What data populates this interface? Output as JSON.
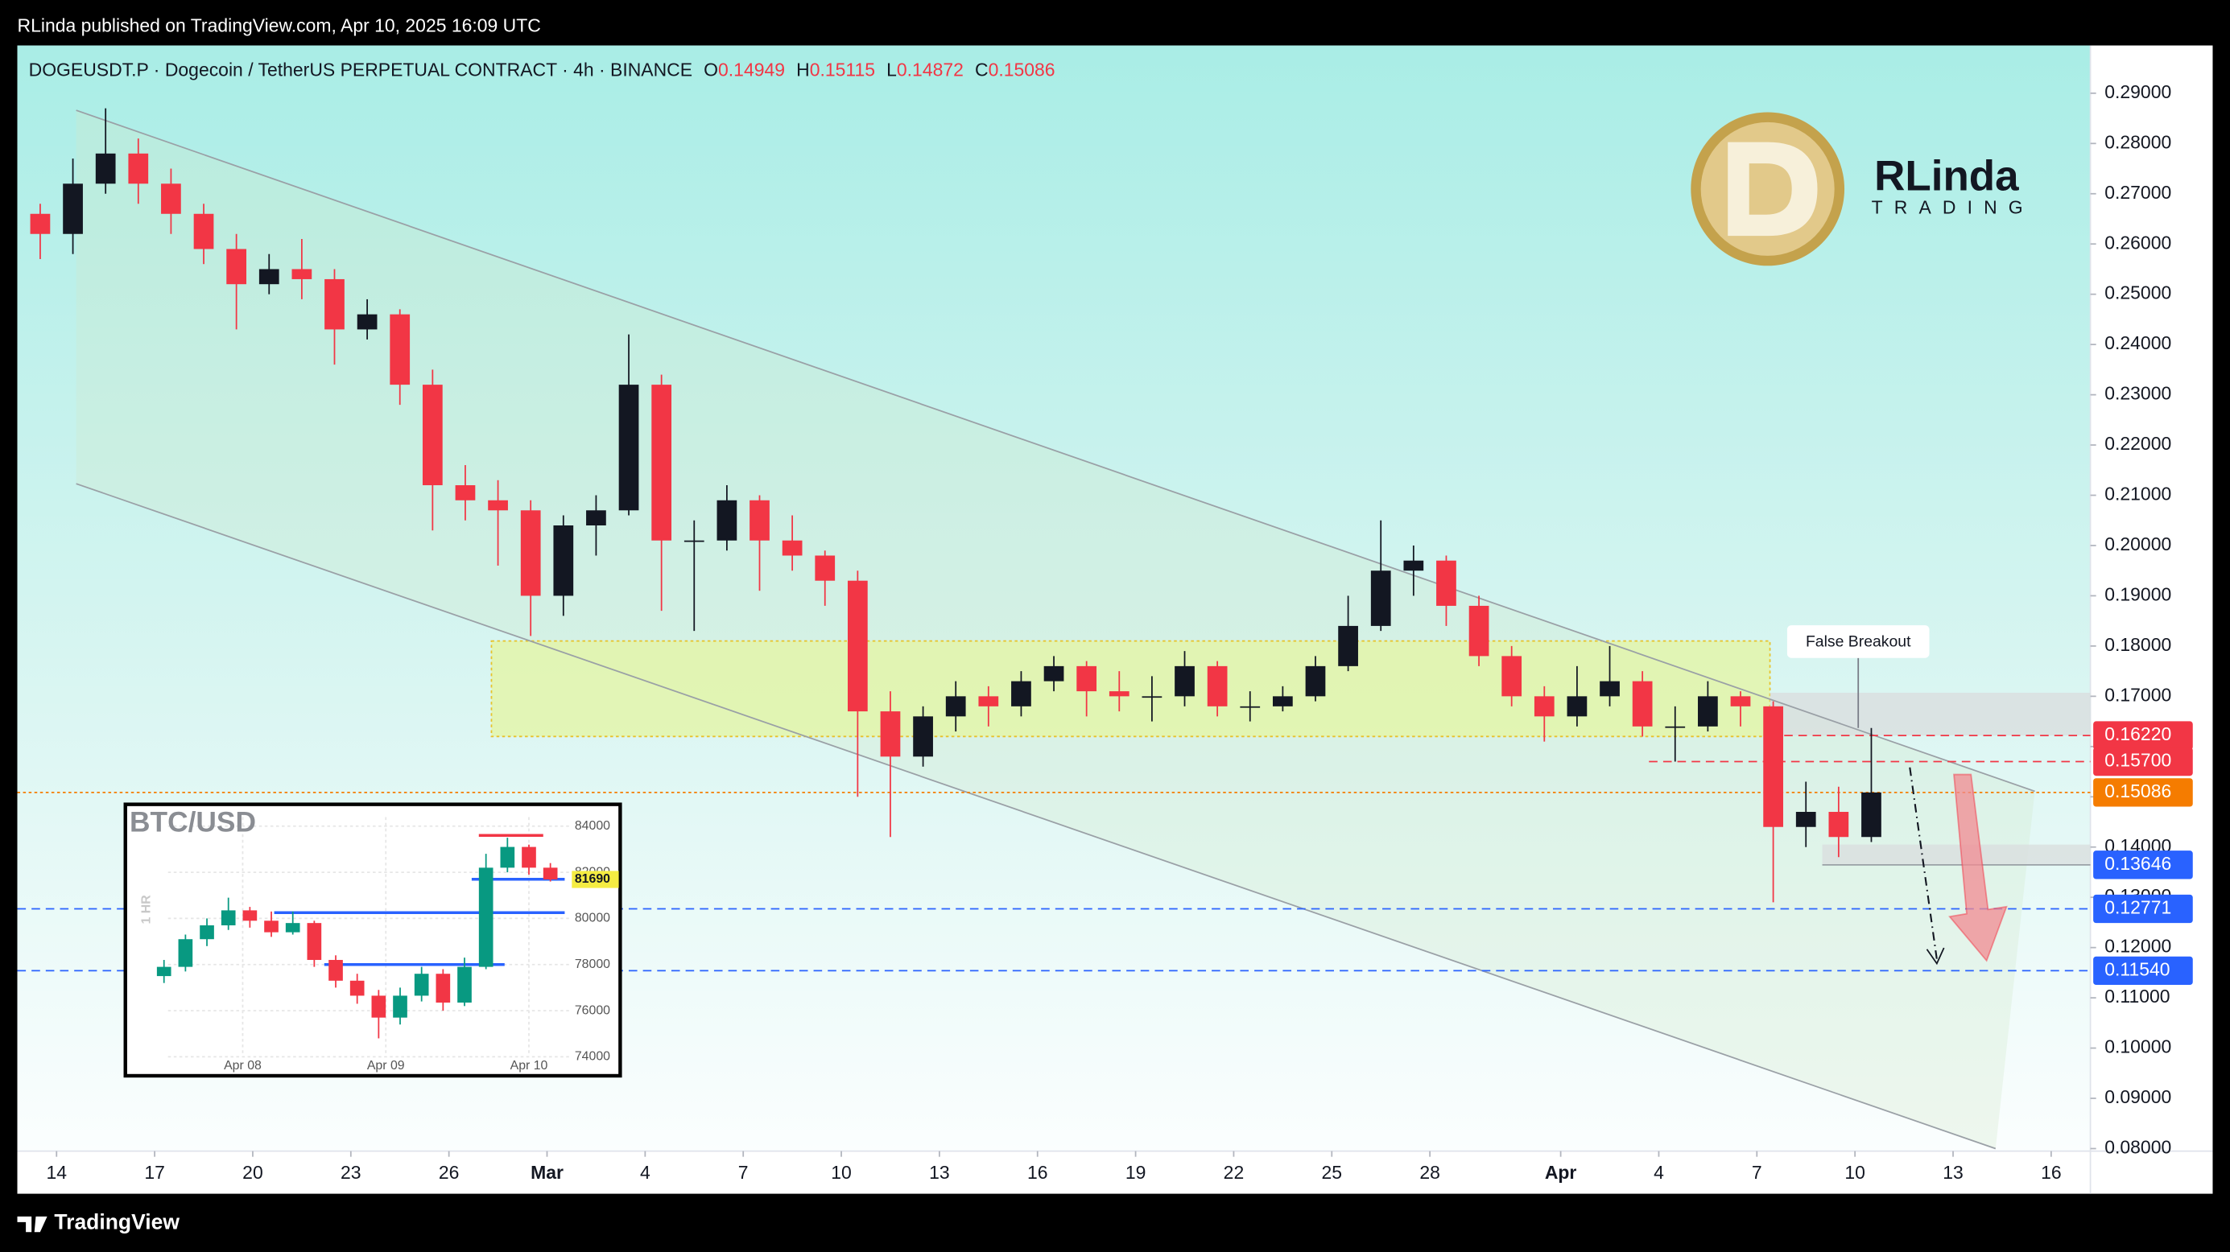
{
  "header": {
    "publisher": "RLinda published on TradingView.com, Apr 10, 2025 16:09 UTC"
  },
  "footer": {
    "brand": "TradingView"
  },
  "logo": {
    "name": "RLinda",
    "tagline": "TRADING"
  },
  "chart_data": [
    {
      "type": "candlestick",
      "title": "DOGEUSDT.P · Dogecoin / TetherUS PERPETUAL CONTRACT · 4h · BINANCE",
      "ohlc_labels": [
        "O",
        "H",
        "L",
        "C"
      ],
      "ohlc_values": [
        0.14949,
        0.15115,
        0.14872,
        0.15086
      ],
      "x": [
        -0.5,
        0.5,
        1.5,
        2.5,
        3.5,
        4.5,
        5.5,
        6.5,
        7.5,
        8.5,
        9.5,
        10.5,
        11.5,
        12.5,
        13.5,
        14.5,
        15.5,
        16.5,
        17.5,
        18.5,
        19.5,
        20.5,
        21.5,
        22.5,
        23.5,
        24.5,
        25.5,
        26.5,
        27.5,
        28.5,
        29.5,
        30.5,
        31.5,
        32.5,
        33.5,
        34.5,
        35.5,
        36.5,
        37.5,
        38.5,
        39.5,
        40.5,
        41.5,
        42.5,
        43.5,
        44.5,
        45.5,
        46.5,
        47.5,
        48.5,
        49.5,
        50.5,
        51.5,
        52.5,
        53.5,
        54.5,
        55.5
      ],
      "open": [
        0.266,
        0.262,
        0.272,
        0.278,
        0.272,
        0.266,
        0.259,
        0.252,
        0.255,
        0.253,
        0.243,
        0.246,
        0.232,
        0.212,
        0.209,
        0.207,
        0.19,
        0.204,
        0.207,
        0.232,
        0.201,
        0.201,
        0.209,
        0.201,
        0.198,
        0.193,
        0.167,
        0.158,
        0.166,
        0.17,
        0.168,
        0.173,
        0.176,
        0.171,
        0.17,
        0.17,
        0.176,
        0.168,
        0.168,
        0.17,
        0.176,
        0.184,
        0.195,
        0.197,
        0.188,
        0.178,
        0.17,
        0.166,
        0.17,
        0.173,
        0.164,
        0.164,
        0.17,
        0.168,
        0.144,
        0.147,
        0.142
      ],
      "high": [
        0.268,
        0.277,
        0.287,
        0.281,
        0.275,
        0.268,
        0.262,
        0.258,
        0.261,
        0.255,
        0.249,
        0.247,
        0.235,
        0.216,
        0.213,
        0.209,
        0.206,
        0.21,
        0.242,
        0.234,
        0.205,
        0.212,
        0.21,
        0.206,
        0.199,
        0.195,
        0.171,
        0.168,
        0.173,
        0.172,
        0.175,
        0.178,
        0.177,
        0.175,
        0.174,
        0.179,
        0.177,
        0.171,
        0.172,
        0.178,
        0.19,
        0.205,
        0.2,
        0.198,
        0.19,
        0.18,
        0.172,
        0.176,
        0.18,
        0.175,
        0.168,
        0.173,
        0.171,
        0.169,
        0.153,
        0.152,
        0.1637
      ],
      "low": [
        0.257,
        0.258,
        0.27,
        0.268,
        0.262,
        0.256,
        0.243,
        0.25,
        0.249,
        0.236,
        0.241,
        0.228,
        0.203,
        0.205,
        0.196,
        0.182,
        0.186,
        0.198,
        0.206,
        0.187,
        0.183,
        0.199,
        0.191,
        0.195,
        0.188,
        0.15,
        0.142,
        0.156,
        0.163,
        0.164,
        0.166,
        0.171,
        0.166,
        0.167,
        0.165,
        0.168,
        0.166,
        0.165,
        0.167,
        0.169,
        0.175,
        0.183,
        0.19,
        0.184,
        0.176,
        0.168,
        0.161,
        0.164,
        0.168,
        0.162,
        0.157,
        0.163,
        0.164,
        0.129,
        0.14,
        0.138,
        0.141
      ],
      "close": [
        0.262,
        0.272,
        0.278,
        0.272,
        0.266,
        0.259,
        0.252,
        0.255,
        0.253,
        0.243,
        0.246,
        0.232,
        0.212,
        0.209,
        0.207,
        0.19,
        0.204,
        0.207,
        0.232,
        0.201,
        0.201,
        0.209,
        0.201,
        0.198,
        0.193,
        0.167,
        0.158,
        0.166,
        0.17,
        0.168,
        0.173,
        0.176,
        0.171,
        0.17,
        0.17,
        0.176,
        0.168,
        0.168,
        0.17,
        0.176,
        0.184,
        0.195,
        0.197,
        0.188,
        0.178,
        0.17,
        0.166,
        0.17,
        0.173,
        0.164,
        0.164,
        0.17,
        0.168,
        0.144,
        0.147,
        0.142,
        0.15086
      ],
      "up_color": "#131722",
      "down_color": "#f23645",
      "xlim": [
        -1.2,
        62.2
      ],
      "xticks": [
        {
          "value": 0,
          "label": "14"
        },
        {
          "value": 3,
          "label": "17"
        },
        {
          "value": 6,
          "label": "20"
        },
        {
          "value": 9,
          "label": "23"
        },
        {
          "value": 12,
          "label": "26"
        },
        {
          "value": 15,
          "label": "Mar"
        },
        {
          "value": 18,
          "label": "4"
        },
        {
          "value": 21,
          "label": "7"
        },
        {
          "value": 24,
          "label": "10"
        },
        {
          "value": 27,
          "label": "13"
        },
        {
          "value": 30,
          "label": "16"
        },
        {
          "value": 33,
          "label": "19"
        },
        {
          "value": 36,
          "label": "22"
        },
        {
          "value": 39,
          "label": "25"
        },
        {
          "value": 42,
          "label": "28"
        },
        {
          "value": 46,
          "label": "Apr"
        },
        {
          "value": 49,
          "label": "4"
        },
        {
          "value": 52,
          "label": "7"
        },
        {
          "value": 55,
          "label": "10"
        },
        {
          "value": 58,
          "label": "13"
        },
        {
          "value": 61,
          "label": "16"
        }
      ],
      "ylim": [
        0.0795,
        0.2995
      ],
      "yticks": [
        {
          "value": 0.29,
          "label": "0.29000"
        },
        {
          "value": 0.28,
          "label": "0.28000"
        },
        {
          "value": 0.27,
          "label": "0.27000"
        },
        {
          "value": 0.26,
          "label": "0.26000"
        },
        {
          "value": 0.25,
          "label": "0.25000"
        },
        {
          "value": 0.24,
          "label": "0.24000"
        },
        {
          "value": 0.23,
          "label": "0.23000"
        },
        {
          "value": 0.22,
          "label": "0.22000"
        },
        {
          "value": 0.21,
          "label": "0.21000"
        },
        {
          "value": 0.2,
          "label": "0.20000"
        },
        {
          "value": 0.19,
          "label": "0.19000"
        },
        {
          "value": 0.18,
          "label": "0.18000"
        },
        {
          "value": 0.17,
          "label": "0.17000"
        },
        {
          "value": 0.16,
          "label": "0.16000"
        },
        {
          "value": 0.15,
          "label": "0.15000"
        },
        {
          "value": 0.14,
          "label": "0.14000"
        },
        {
          "value": 0.13,
          "label": "0.13000"
        },
        {
          "value": 0.12,
          "label": "0.12000"
        },
        {
          "value": 0.11,
          "label": "0.11000"
        },
        {
          "value": 0.1,
          "label": "0.10000"
        },
        {
          "value": 0.09,
          "label": "0.09000"
        },
        {
          "value": 0.08,
          "label": "0.08000"
        }
      ],
      "zones": [
        {
          "low": 0.162,
          "high": 0.181,
          "x": [
            13.3,
            52.4
          ],
          "color": "#e4f5a6"
        },
        {
          "low": 0.1622,
          "high": 0.1707,
          "x": [
            52.4,
            62.2
          ],
          "color": "#d9dfdf"
        },
        {
          "low": 0.1365,
          "high": 0.1405,
          "x": [
            54,
            62.2
          ],
          "color": "#d9dfdf"
        }
      ],
      "channel": [
        {
          "x": [
            0.6,
            60.5
          ],
          "y": [
            0.2866,
            0.1511
          ]
        },
        {
          "x": [
            0.6,
            59.3
          ],
          "y": [
            0.2123,
            0.08
          ]
        }
      ],
      "price_markers": [
        {
          "value": 0.1622,
          "label": "0.16220",
          "color": "#f23645",
          "line": "dashed",
          "line_start": 52.4
        },
        {
          "value": 0.157,
          "label": "0.15700",
          "color": "#f23645",
          "line": "dashed",
          "line_start": 48.7
        },
        {
          "value": 0.15086,
          "label": "0.15086",
          "color": "#f57c00",
          "line": "dotted",
          "line_start": -1.2
        },
        {
          "value": 0.13646,
          "label": "0.13646",
          "color": "#2962ff",
          "line": "solid",
          "line_start": 54
        },
        {
          "value": 0.12771,
          "label": "0.12771",
          "color": "#2962ff",
          "line": "dashed",
          "line_start": -1.2
        },
        {
          "value": 0.1154,
          "label": "0.11540",
          "color": "#2962ff",
          "line": "dashed",
          "line_start": -1.2
        }
      ],
      "annotations": [
        {
          "text": "False Breakout",
          "x": 55.1,
          "y": 0.1637
        }
      ]
    },
    {
      "type": "candlestick",
      "title": "BTC/USD",
      "y_label": "1 HR",
      "x": [
        -0.55,
        -0.4,
        -0.25,
        -0.1,
        0.05,
        0.2,
        0.35,
        0.5,
        0.65,
        0.8,
        0.95,
        1.1,
        1.25,
        1.4,
        1.55,
        1.7,
        1.85,
        2.0,
        2.15
      ],
      "open": [
        77500,
        77900,
        79100,
        79700,
        80350,
        79900,
        79400,
        79800,
        78200,
        77300,
        76650,
        75700,
        76650,
        77600,
        76350,
        77900,
        82200,
        83100,
        82200
      ],
      "high": [
        78200,
        79300,
        80000,
        80900,
        80500,
        80300,
        80300,
        79900,
        78400,
        77600,
        76900,
        77000,
        77900,
        77800,
        78300,
        82800,
        83500,
        83200,
        82400
      ],
      "low": [
        77200,
        77700,
        78800,
        79500,
        79600,
        79200,
        79300,
        77900,
        77000,
        76300,
        74800,
        75400,
        76400,
        76000,
        76200,
        77800,
        82000,
        81900,
        81600
      ],
      "close": [
        77900,
        79100,
        79700,
        80350,
        79900,
        79400,
        79800,
        78200,
        77300,
        76650,
        75700,
        76650,
        77600,
        76350,
        77900,
        82200,
        83100,
        82200,
        81690
      ],
      "up_color": "#089981",
      "down_color": "#f23645",
      "grid": true,
      "xlim": [
        -0.8,
        2.3
      ],
      "xticks": [
        {
          "value": 0,
          "label": "Apr 08"
        },
        {
          "value": 1,
          "label": "Apr 09"
        },
        {
          "value": 2,
          "label": "Apr 10"
        }
      ],
      "ylim": [
        73300,
        84700
      ],
      "yticks": [
        84000,
        82000,
        80000,
        78000,
        76000,
        74000
      ],
      "levels": [
        {
          "value": 83600,
          "x": [
            1.65,
            2.1
          ],
          "color": "#f23645"
        },
        {
          "value": 81700,
          "x": [
            1.6,
            2.25
          ],
          "color": "#2962ff"
        },
        {
          "value": 80250,
          "x": [
            0.22,
            2.25
          ],
          "color": "#2962ff"
        },
        {
          "value": 78000,
          "x": [
            0.57,
            1.83
          ],
          "color": "#2962ff"
        }
      ],
      "price_markers": [
        {
          "value": 81690,
          "color": "#f5ec42"
        }
      ]
    }
  ]
}
